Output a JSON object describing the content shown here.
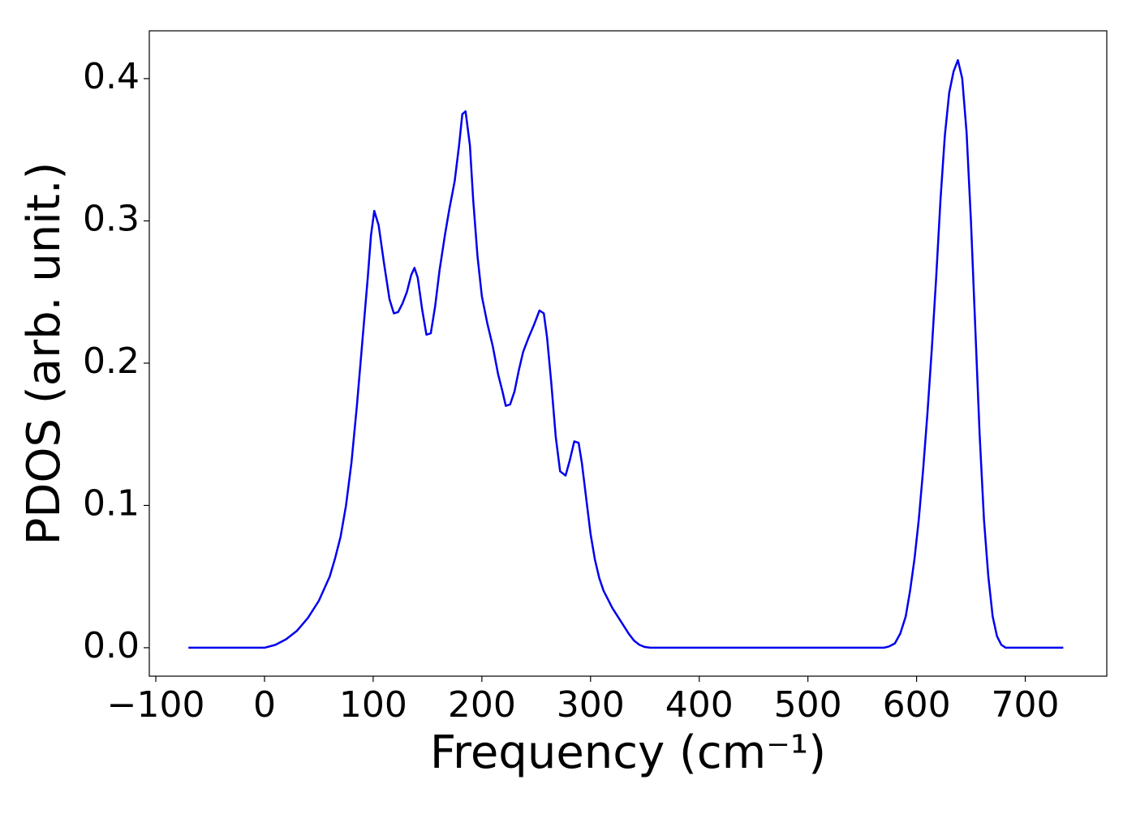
{
  "chart_data": {
    "type": "line",
    "xlabel": "Frequency (cm⁻¹)",
    "ylabel": "PDOS (arb. unit.)",
    "x": [
      -70,
      -50,
      -30,
      -10,
      0,
      10,
      20,
      30,
      40,
      50,
      60,
      65,
      70,
      75,
      80,
      85,
      90,
      95,
      98,
      101,
      105,
      110,
      115,
      119,
      123,
      127,
      131,
      135,
      138,
      141,
      145,
      149,
      153,
      157,
      161,
      166,
      170,
      175,
      179,
      182,
      185,
      189,
      192,
      196,
      200,
      205,
      210,
      215,
      219,
      222,
      226,
      230,
      234,
      238,
      243,
      248,
      253,
      257,
      260,
      264,
      268,
      272,
      277,
      281,
      285,
      289,
      292,
      296,
      300,
      304,
      308,
      312,
      316,
      320,
      325,
      330,
      335,
      340,
      345,
      350,
      355,
      400,
      450,
      500,
      550,
      570,
      575,
      580,
      585,
      590,
      594,
      598,
      602,
      606,
      610,
      614,
      618,
      622,
      626,
      630,
      634,
      638,
      642,
      646,
      650,
      654,
      658,
      662,
      666,
      670,
      674,
      678,
      682,
      700,
      735
    ],
    "series": [
      {
        "name": "PDOS",
        "color": "#0000ee",
        "values": [
          0,
          0,
          0,
          0,
          0,
          0.002,
          0.006,
          0.012,
          0.021,
          0.033,
          0.05,
          0.063,
          0.078,
          0.1,
          0.13,
          0.17,
          0.215,
          0.26,
          0.29,
          0.307,
          0.297,
          0.27,
          0.245,
          0.235,
          0.236,
          0.242,
          0.25,
          0.262,
          0.267,
          0.26,
          0.238,
          0.22,
          0.221,
          0.24,
          0.265,
          0.29,
          0.308,
          0.328,
          0.353,
          0.375,
          0.377,
          0.353,
          0.315,
          0.275,
          0.247,
          0.228,
          0.212,
          0.192,
          0.18,
          0.17,
          0.171,
          0.18,
          0.195,
          0.208,
          0.218,
          0.227,
          0.237,
          0.235,
          0.218,
          0.185,
          0.148,
          0.124,
          0.121,
          0.132,
          0.145,
          0.144,
          0.13,
          0.105,
          0.08,
          0.062,
          0.049,
          0.04,
          0.034,
          0.028,
          0.022,
          0.016,
          0.01,
          0.005,
          0.002,
          0.0005,
          0,
          0,
          0,
          0,
          0,
          0,
          0.001,
          0.003,
          0.01,
          0.022,
          0.04,
          0.062,
          0.09,
          0.125,
          0.165,
          0.21,
          0.26,
          0.315,
          0.36,
          0.39,
          0.405,
          0.413,
          0.4,
          0.362,
          0.3,
          0.225,
          0.15,
          0.09,
          0.05,
          0.022,
          0.008,
          0.002,
          0,
          0,
          0
        ]
      }
    ],
    "xlim": [
      -106,
      775
    ],
    "ylim": [
      -0.02,
      0.4336
    ],
    "xticks": [
      {
        "value": -100,
        "label": "−100"
      },
      0,
      100,
      200,
      300,
      400,
      500,
      600,
      700
    ],
    "yticks": [
      {
        "value": 0,
        "label": "0.0"
      },
      0.1,
      0.2,
      0.3,
      0.4
    ],
    "grid": false
  }
}
